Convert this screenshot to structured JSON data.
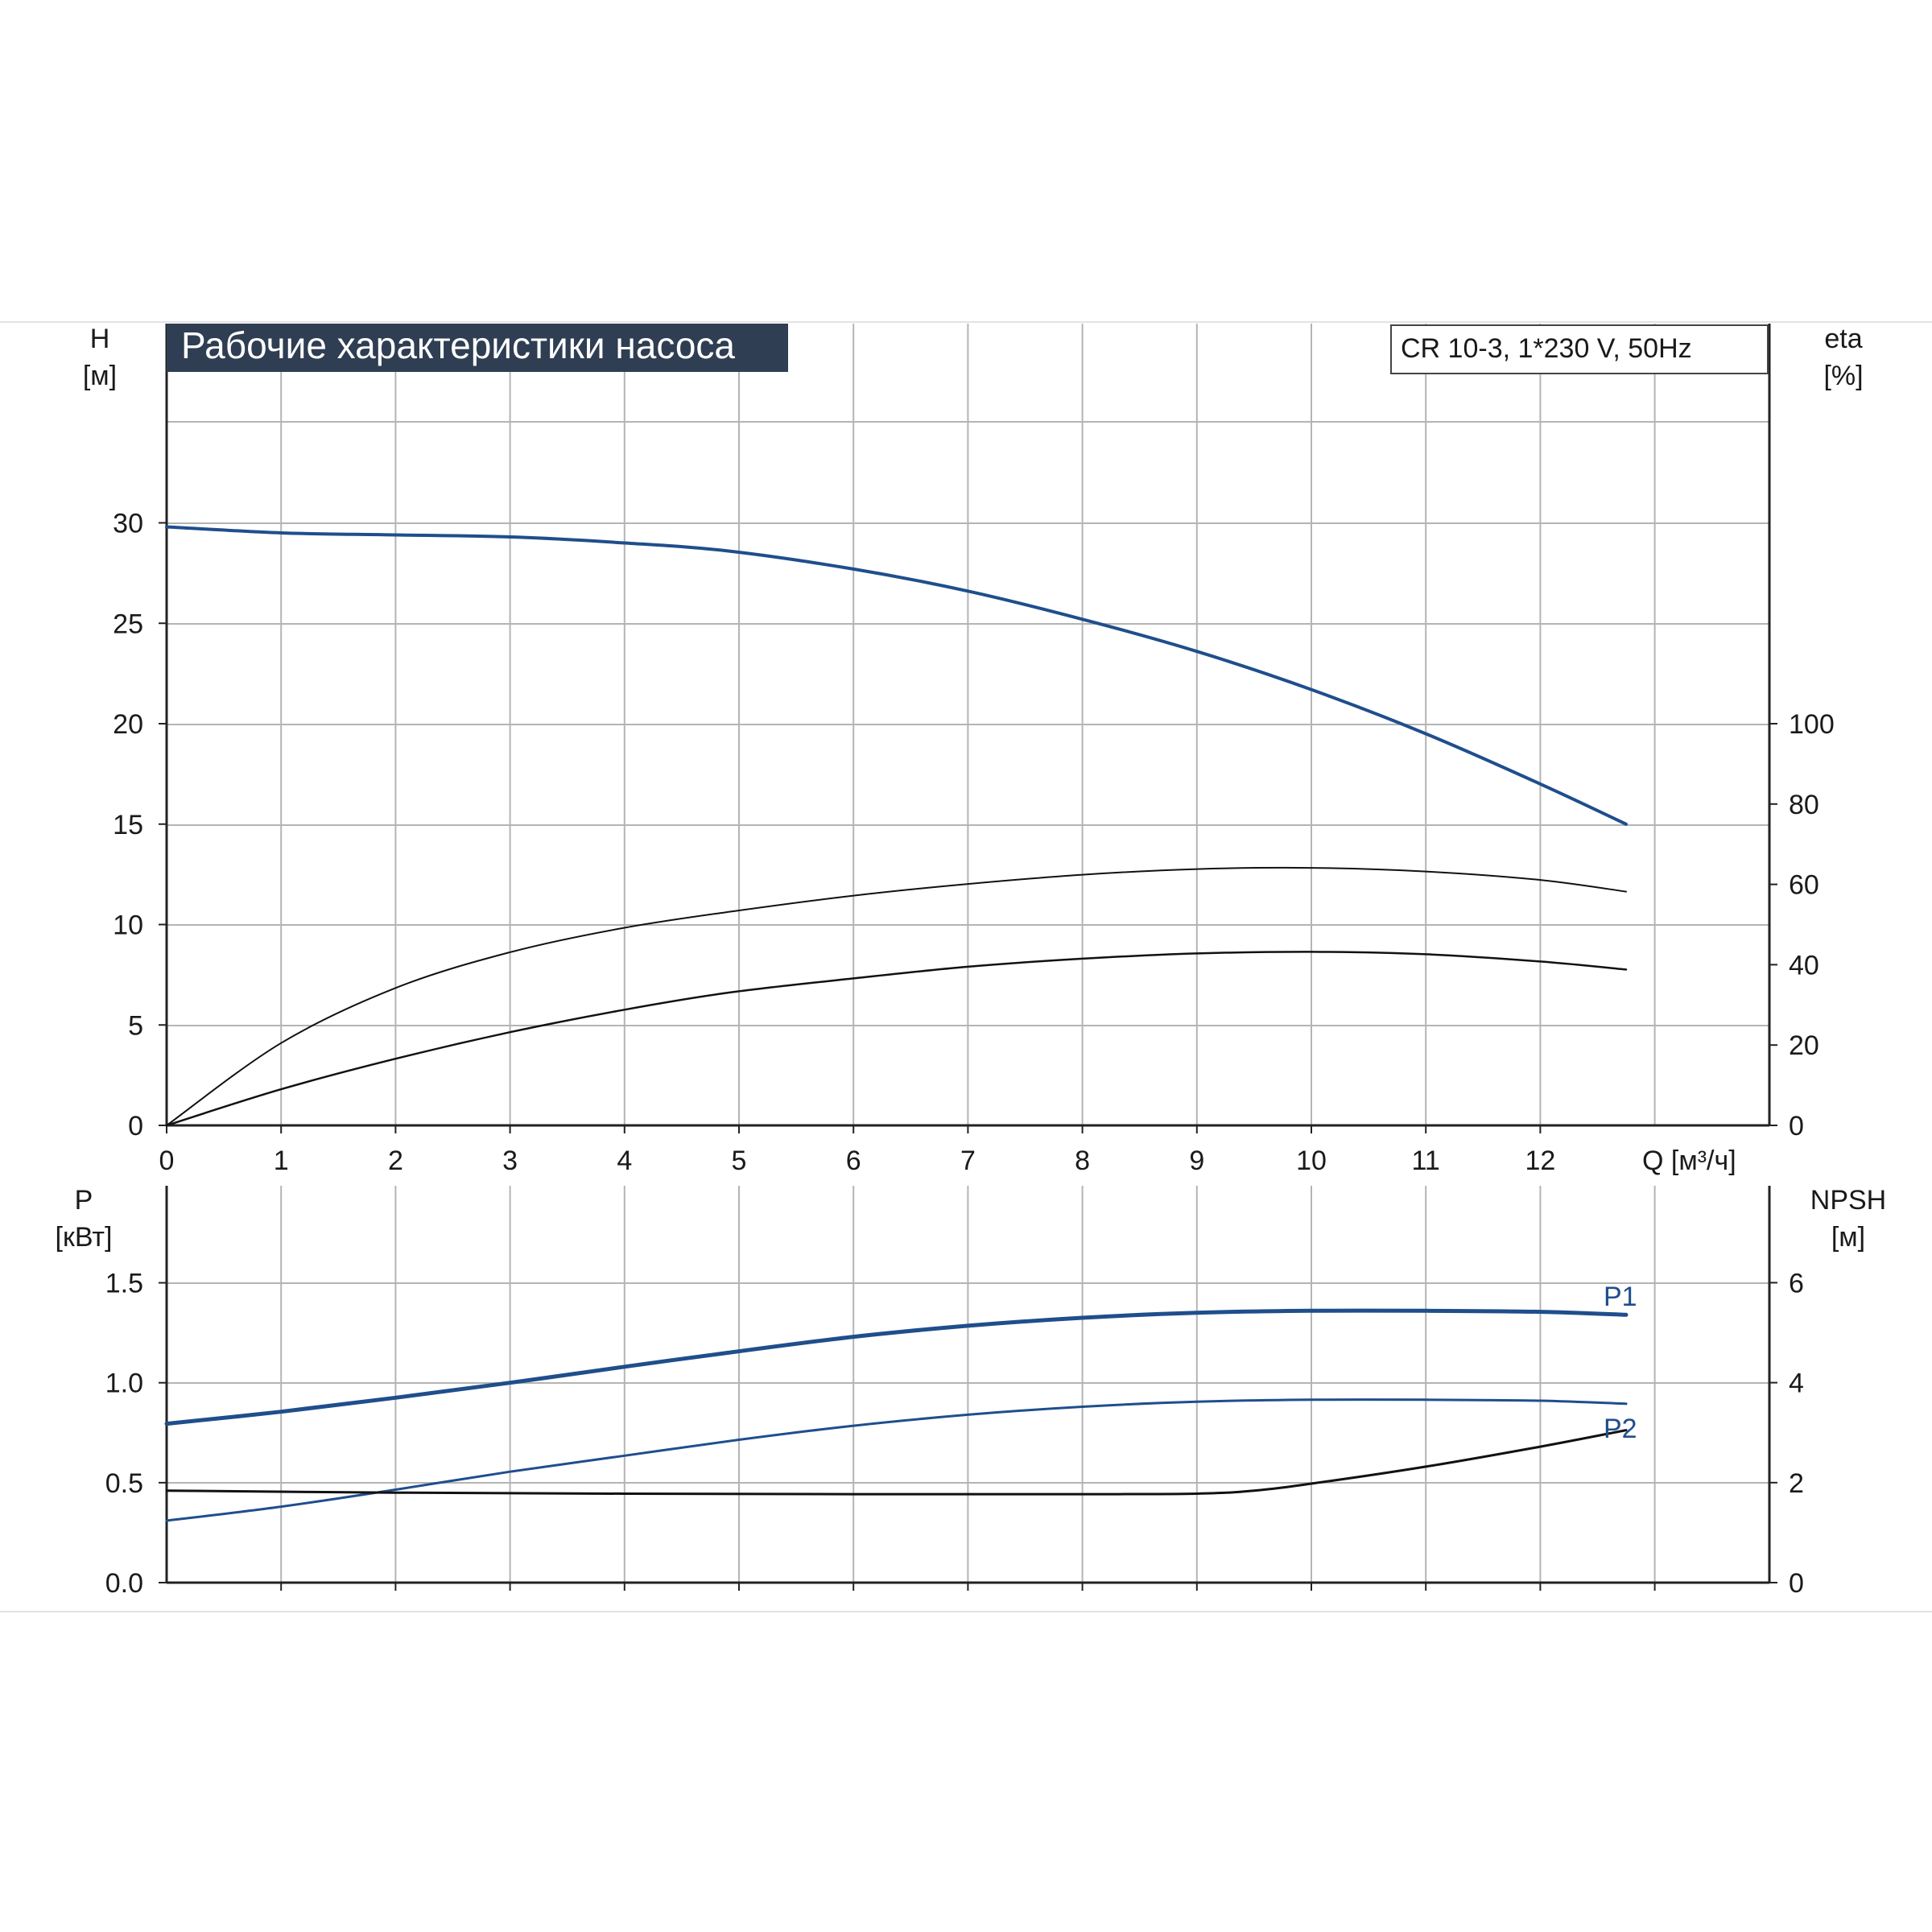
{
  "colors": {
    "blue": "#1f4e8c",
    "black": "#111111",
    "grid": "#b4b4b4",
    "title_bg": "#2f3e52",
    "title_fg": "#ffffff"
  },
  "chart_data": [
    {
      "type": "line",
      "title": "Рабочие характеристики насоса",
      "model_label": "CR 10-3, 1*230 V, 50Hz",
      "y_left_label": [
        "H",
        "[м]"
      ],
      "y_right_label": [
        "eta",
        "[%]"
      ],
      "x_label": "Q [м³/ч]",
      "xlim": [
        0,
        13
      ],
      "x_ticks": [
        "0",
        "1",
        "2",
        "3",
        "4",
        "5",
        "6",
        "7",
        "8",
        "9",
        "10",
        "11",
        "12"
      ],
      "ylim_left": [
        0,
        30
      ],
      "y_left_ticks": [
        "0",
        "5",
        "10",
        "15",
        "20",
        "25",
        "30"
      ],
      "ylim_right": [
        0,
        100
      ],
      "y_right_ticks": [
        "0",
        "20",
        "40",
        "60",
        "80",
        "100"
      ],
      "grid": true,
      "series": [
        {
          "axis": "left",
          "color": "blue",
          "x": [
            0,
            1,
            2,
            3,
            4,
            4.9,
            6,
            7,
            8,
            9,
            10,
            11,
            12,
            12.75
          ],
          "y": [
            29.8,
            29.5,
            29.4,
            29.3,
            29.0,
            28.6,
            27.7,
            26.6,
            25.2,
            23.6,
            21.7,
            19.5,
            17.0,
            15.0
          ]
        },
        {
          "axis": "right",
          "color": "black",
          "x": [
            0,
            1,
            2,
            3,
            4,
            5,
            6,
            7,
            8,
            9,
            10,
            11,
            12,
            12.75
          ],
          "y": [
            0,
            20.5,
            34.2,
            43.1,
            49.2,
            53.5,
            57.2,
            60.1,
            62.4,
            63.8,
            64.1,
            63.2,
            61.1,
            58.2
          ]
        },
        {
          "axis": "right",
          "color": "black",
          "x": [
            0,
            1,
            2,
            3,
            4,
            4.9,
            6,
            7,
            8,
            9,
            10,
            11,
            12,
            12.75
          ],
          "y": [
            0,
            9.0,
            16.6,
            23.2,
            28.8,
            33.0,
            36.6,
            39.5,
            41.5,
            42.8,
            43.2,
            42.6,
            40.8,
            38.8
          ]
        }
      ]
    },
    {
      "type": "line",
      "y_left_label": [
        "P",
        "[кВт]"
      ],
      "y_right_label": [
        "NPSH",
        "[м]"
      ],
      "xlim": [
        0,
        13
      ],
      "ylim_left": [
        0,
        1.8
      ],
      "y_left_ticks": [
        "0.0",
        "0.5",
        "1.0",
        "1.5"
      ],
      "ylim_right": [
        0,
        7.2
      ],
      "y_right_ticks": [
        "0",
        "2",
        "4",
        "6"
      ],
      "grid": true,
      "series": [
        {
          "name": "P1",
          "axis": "left",
          "color": "blue",
          "x": [
            0,
            1,
            2,
            3,
            4,
            4.9,
            6,
            7,
            8,
            9,
            10,
            11,
            12,
            12.75
          ],
          "y": [
            0.795,
            0.855,
            0.925,
            1.0,
            1.08,
            1.15,
            1.23,
            1.285,
            1.325,
            1.35,
            1.36,
            1.36,
            1.355,
            1.34
          ]
        },
        {
          "name": "P2",
          "axis": "left",
          "color": "blue",
          "x": [
            0,
            1,
            2,
            3,
            4,
            5,
            6,
            7,
            8,
            9,
            10,
            11,
            12,
            12.75
          ],
          "y": [
            0.31,
            0.38,
            0.465,
            0.555,
            0.635,
            0.715,
            0.785,
            0.84,
            0.88,
            0.905,
            0.915,
            0.915,
            0.91,
            0.895
          ]
        },
        {
          "name": "NPSH",
          "axis": "right",
          "color": "black",
          "x": [
            0,
            2,
            4,
            6,
            8,
            9,
            9.5,
            10,
            11,
            12,
            12.75
          ],
          "y": [
            1.84,
            1.8,
            1.78,
            1.77,
            1.77,
            1.78,
            1.84,
            1.98,
            2.32,
            2.72,
            3.05
          ]
        }
      ]
    }
  ]
}
